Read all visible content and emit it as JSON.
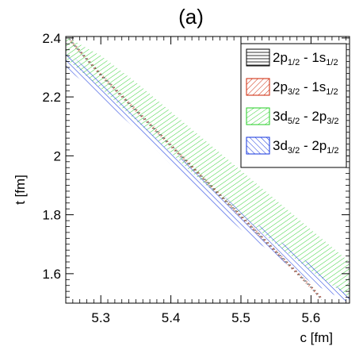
{
  "chart_data": {
    "type": "area",
    "title": "(a)",
    "xlabel": "c [fm]",
    "ylabel": "t [fm]",
    "xlim": [
      5.25,
      5.655
    ],
    "ylim": [
      1.5,
      2.405
    ],
    "x_ticks": [
      5.3,
      5.4,
      5.5,
      5.6
    ],
    "x_tick_labels": [
      "5.3",
      "5.4",
      "5.5",
      "5.6"
    ],
    "y_ticks": [
      1.6,
      1.8,
      2.0,
      2.2,
      2.4
    ],
    "y_tick_labels": [
      "1.6",
      "1.8",
      "2",
      "2.2",
      "2.4"
    ],
    "grid": false,
    "legend_position": "top-right",
    "series": [
      {
        "name": "2p1/2 - 1s1/2",
        "label_parts": {
          "main1": "2p",
          "sub1": "1/2",
          "mid": " - 1s",
          "sub2": "1/2"
        },
        "color": "#000000",
        "hatch": "horizontal",
        "band": {
          "x": [
            5.255,
            5.3,
            5.35,
            5.4,
            5.45,
            5.5,
            5.55,
            5.6,
            5.615
          ],
          "lower": [
            2.39,
            2.27,
            2.15,
            2.03,
            1.91,
            1.79,
            1.67,
            1.55,
            1.51
          ],
          "upper": [
            2.4,
            2.28,
            2.16,
            2.04,
            1.92,
            1.8,
            1.68,
            1.56,
            1.52
          ]
        }
      },
      {
        "name": "2p3/2 - 1s1/2",
        "label_parts": {
          "main1": "2p",
          "sub1": "3/2",
          "mid": " - 1s",
          "sub2": "1/2"
        },
        "color": "#cc2200",
        "hatch": "diagonal",
        "band": {
          "x": [
            5.255,
            5.3,
            5.35,
            5.4,
            5.45,
            5.5,
            5.55,
            5.6,
            5.615
          ],
          "lower": [
            2.388,
            2.268,
            2.148,
            2.028,
            1.908,
            1.788,
            1.668,
            1.548,
            1.508
          ],
          "upper": [
            2.402,
            2.282,
            2.162,
            2.042,
            1.922,
            1.802,
            1.682,
            1.562,
            1.522
          ]
        }
      },
      {
        "name": "3d5/2 - 2p3/2",
        "label_parts": {
          "main1": "3d",
          "sub1": "5/2",
          "mid": " - 2p",
          "sub2": "3/2"
        },
        "color": "#22cc22",
        "hatch": "diagonal",
        "band": {
          "x": [
            5.25,
            5.3,
            5.35,
            5.4,
            5.45,
            5.5,
            5.55,
            5.6,
            5.655
          ],
          "lower": [
            2.33,
            2.23,
            2.12,
            2.01,
            1.9,
            1.8,
            1.7,
            1.61,
            1.52
          ],
          "upper": [
            2.405,
            2.34,
            2.25,
            2.15,
            2.05,
            1.95,
            1.85,
            1.75,
            1.64
          ]
        }
      },
      {
        "name": "3d3/2 - 2p1/2",
        "label_parts": {
          "main1": "3d",
          "sub1": "3/2",
          "mid": " - 2p",
          "sub2": "1/2"
        },
        "color": "#1133dd",
        "hatch": "diagonal-reverse",
        "band": {
          "x": [
            5.25,
            5.3,
            5.35,
            5.4,
            5.45,
            5.5,
            5.55,
            5.6,
            5.655
          ],
          "lower": [
            2.3,
            2.2,
            2.09,
            1.97,
            1.86,
            1.75,
            1.66,
            1.57,
            1.5
          ],
          "upper": [
            2.36,
            2.25,
            2.14,
            2.02,
            1.92,
            1.81,
            1.72,
            1.63,
            1.52
          ]
        }
      }
    ]
  }
}
